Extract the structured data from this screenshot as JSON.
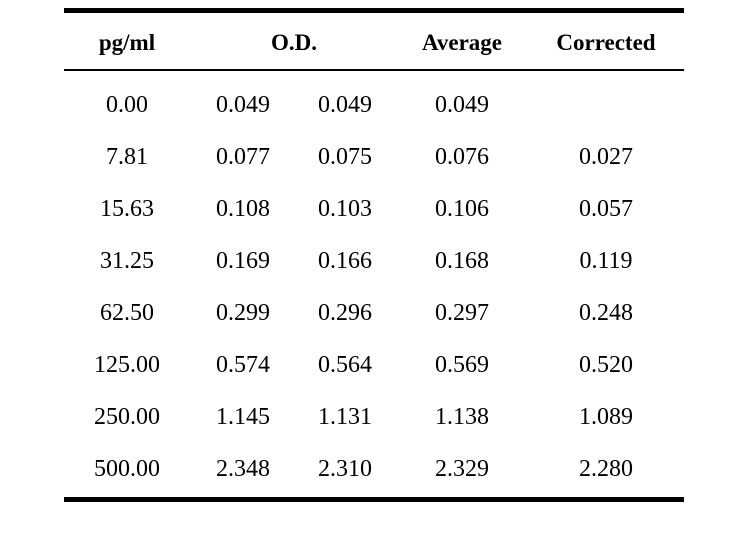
{
  "table": {
    "headers": {
      "concentration": "pg/ml",
      "od": "O.D.",
      "average": "Average",
      "corrected": "Corrected"
    },
    "rows": [
      {
        "concentration": "0.00",
        "od1": "0.049",
        "od2": "0.049",
        "average": "0.049",
        "corrected": ""
      },
      {
        "concentration": "7.81",
        "od1": "0.077",
        "od2": "0.075",
        "average": "0.076",
        "corrected": "0.027"
      },
      {
        "concentration": "15.63",
        "od1": "0.108",
        "od2": "0.103",
        "average": "0.106",
        "corrected": "0.057"
      },
      {
        "concentration": "31.25",
        "od1": "0.169",
        "od2": "0.166",
        "average": "0.168",
        "corrected": "0.119"
      },
      {
        "concentration": "62.50",
        "od1": "0.299",
        "od2": "0.296",
        "average": "0.297",
        "corrected": "0.248"
      },
      {
        "concentration": "125.00",
        "od1": "0.574",
        "od2": "0.564",
        "average": "0.569",
        "corrected": "0.520"
      },
      {
        "concentration": "250.00",
        "od1": "1.145",
        "od2": "1.131",
        "average": "1.138",
        "corrected": "1.089"
      },
      {
        "concentration": "500.00",
        "od1": "2.348",
        "od2": "2.310",
        "average": "2.329",
        "corrected": "2.280"
      }
    ]
  }
}
